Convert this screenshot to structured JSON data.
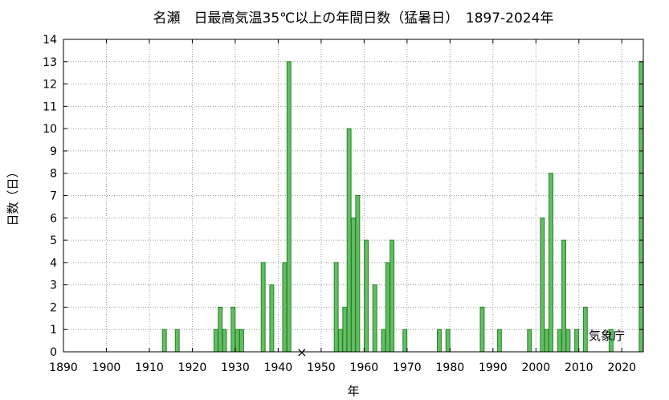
{
  "chart_data": {
    "type": "bar",
    "title": "名瀬　日最高気温35℃以上の年間日数（猛暑日）　1897-2024年",
    "xlabel": "年",
    "ylabel": "日数（日）",
    "xlim": [
      1890,
      2025
    ],
    "ylim": [
      0,
      14
    ],
    "x_ticks": [
      "1890",
      "1900",
      "1910",
      "1920",
      "1930",
      "1940",
      "1950",
      "1960",
      "1970",
      "1980",
      "1990",
      "2000",
      "2010",
      "2020"
    ],
    "y_ticks": [
      "0",
      "1",
      "2",
      "3",
      "4",
      "5",
      "6",
      "7",
      "8",
      "9",
      "10",
      "11",
      "12",
      "13",
      "14"
    ],
    "grid": true,
    "bar_color": "#66bb66",
    "bar_edge_color": "#228822",
    "missing_marker": {
      "symbol": "×",
      "year": 1945
    },
    "source_label": "気象庁",
    "series": [
      {
        "points": [
          {
            "year": 1913,
            "days": 1
          },
          {
            "year": 1916,
            "days": 1
          },
          {
            "year": 1925,
            "days": 1
          },
          {
            "year": 1926,
            "days": 2
          },
          {
            "year": 1927,
            "days": 1
          },
          {
            "year": 1929,
            "days": 2
          },
          {
            "year": 1930,
            "days": 1
          },
          {
            "year": 1931,
            "days": 1
          },
          {
            "year": 1936,
            "days": 4
          },
          {
            "year": 1938,
            "days": 3
          },
          {
            "year": 1941,
            "days": 4
          },
          {
            "year": 1942,
            "days": 13
          },
          {
            "year": 1953,
            "days": 4
          },
          {
            "year": 1954,
            "days": 1
          },
          {
            "year": 1955,
            "days": 2
          },
          {
            "year": 1956,
            "days": 10
          },
          {
            "year": 1957,
            "days": 6
          },
          {
            "year": 1958,
            "days": 7
          },
          {
            "year": 1960,
            "days": 5
          },
          {
            "year": 1962,
            "days": 3
          },
          {
            "year": 1964,
            "days": 1
          },
          {
            "year": 1965,
            "days": 4
          },
          {
            "year": 1966,
            "days": 5
          },
          {
            "year": 1969,
            "days": 1
          },
          {
            "year": 1977,
            "days": 1
          },
          {
            "year": 1979,
            "days": 1
          },
          {
            "year": 1987,
            "days": 2
          },
          {
            "year": 1991,
            "days": 1
          },
          {
            "year": 1998,
            "days": 1
          },
          {
            "year": 2001,
            "days": 6
          },
          {
            "year": 2002,
            "days": 1
          },
          {
            "year": 2003,
            "days": 8
          },
          {
            "year": 2005,
            "days": 1
          },
          {
            "year": 2006,
            "days": 5
          },
          {
            "year": 2007,
            "days": 1
          },
          {
            "year": 2009,
            "days": 1
          },
          {
            "year": 2011,
            "days": 2
          },
          {
            "year": 2017,
            "days": 1
          },
          {
            "year": 2024,
            "days": 13
          }
        ]
      }
    ]
  }
}
